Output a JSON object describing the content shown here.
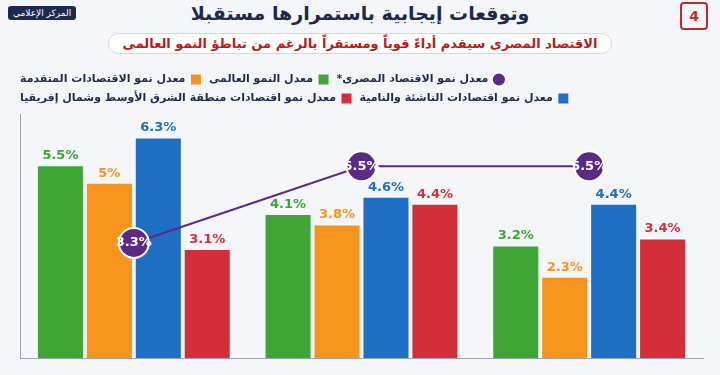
{
  "chart_data": {
    "type": "bar",
    "title": "وتوقعات إيجابية باستمرارها مستقبلا",
    "subtitle": "الاقتصاد المصرى سيقدم أداءً قوياً ومستقراً بالرغم من تباطؤ النمو العالمى",
    "annotations": [
      "4",
      "المركز الإعلامي"
    ],
    "categories": [
      null,
      null,
      null
    ],
    "series": [
      {
        "name": "معدل نمو الاقتصاد المصرى*",
        "type": "line",
        "marker": "circle",
        "color": "#5b2a86",
        "values": [
          3.3,
          5.5,
          5.5
        ],
        "value_labels": [
          "3.3%",
          "5.5%",
          "5.5%"
        ]
      },
      {
        "name": "معدل النمو العالمى",
        "color": "#3fa535",
        "values": [
          5.5,
          4.1,
          3.2
        ],
        "value_labels": [
          "5.5%",
          "4.1%",
          "3.2%"
        ]
      },
      {
        "name": "معدل نمو الاقتصادات المتقدمة",
        "color": "#f7941d",
        "values": [
          5,
          3.8,
          2.3
        ],
        "value_labels": [
          "5%",
          "3.8%",
          "2.3%"
        ]
      },
      {
        "name": "معدل نمو اقتصادات الناشئة والنامية",
        "color": "#1f6fc5",
        "values": [
          6.3,
          4.6,
          4.4
        ],
        "value_labels": [
          "6.3%",
          "4.6%",
          "4.4%"
        ]
      },
      {
        "name": "معدل نمو اقتصادات منطقة الشرق الأوسط وشمال إفريقيا",
        "color": "#d32f3a",
        "values": [
          3.1,
          4.4,
          3.4
        ],
        "value_labels": [
          "3.1%",
          "4.4%",
          "3.4%"
        ]
      }
    ],
    "ylim": [
      0,
      7
    ],
    "grid": false,
    "legend": "top-right",
    "data_labels": true,
    "tick_labels": false
  }
}
